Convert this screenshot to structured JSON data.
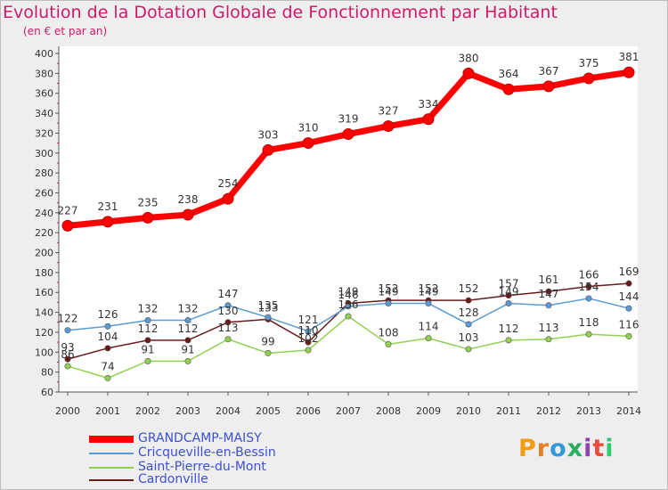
{
  "header": {
    "title": "Evolution de la Dotation Globale de Fonctionnement par Habitant",
    "subtitle": "(en € et par an)"
  },
  "logo": {
    "text": "Proxiti",
    "colors": [
      "#f39c12",
      "#e67e22",
      "#3498db",
      "#27ae60",
      "#8e44ad",
      "#e74c3c",
      "#2ecc71"
    ]
  },
  "chart_data": {
    "type": "line",
    "title": "Evolution de la Dotation Globale de Fonctionnement par Habitant",
    "subtitle": "(en € et par an)",
    "x": [
      "2000",
      "2001",
      "2002",
      "2003",
      "2004",
      "2005",
      "2006",
      "2007",
      "2008",
      "2009",
      "2010",
      "2011",
      "2012",
      "2013",
      "2014"
    ],
    "ylim": [
      60,
      400
    ],
    "yticks": [
      60,
      80,
      100,
      120,
      140,
      160,
      180,
      200,
      220,
      240,
      260,
      280,
      300,
      320,
      340,
      360,
      380,
      400
    ],
    "grid": false,
    "legend_position": "bottom-left",
    "series": [
      {
        "name": "GRANDCAMP-MAISY",
        "color": "#ff0000",
        "values": [
          227,
          231,
          235,
          238,
          254,
          303,
          310,
          319,
          327,
          334,
          380,
          364,
          367,
          375,
          381
        ],
        "labels": [
          "227",
          "231",
          "235",
          "238",
          "254",
          "303",
          "310",
          "319",
          "327",
          "334",
          "380",
          "364",
          "367",
          "375",
          "381"
        ]
      },
      {
        "name": "Cricqueville-en-Bessin",
        "color": "#5b9bd5",
        "values": [
          122,
          126,
          132,
          132,
          147,
          135,
          121,
          146,
          149,
          149,
          128,
          149,
          147,
          154,
          144
        ],
        "labels": [
          "122",
          "126",
          "132",
          "132",
          "147",
          "135",
          "121",
          "146",
          "149",
          "149",
          "128",
          "149",
          "147",
          "154",
          "144"
        ]
      },
      {
        "name": "Saint-Pierre-du-Mont",
        "color": "#92d050",
        "values": [
          86,
          74,
          91,
          91,
          113,
          99,
          102,
          136,
          108,
          114,
          103,
          112,
          113,
          118,
          116
        ],
        "labels": [
          "86",
          "74",
          "91",
          "91",
          "113",
          "99",
          "102",
          "136",
          "108",
          "114",
          "103",
          "112",
          "113",
          "118",
          "116"
        ]
      },
      {
        "name": "Cardonville",
        "color": "#6b1a1a",
        "values": [
          93,
          104,
          112,
          112,
          130,
          133,
          110,
          149,
          152,
          152,
          152,
          157,
          161,
          166,
          169
        ],
        "labels": [
          "93",
          "104",
          "112",
          "112",
          "130",
          "133",
          "110",
          "149",
          "152",
          "152",
          "152",
          "157",
          "161",
          "166",
          "169"
        ]
      }
    ]
  }
}
